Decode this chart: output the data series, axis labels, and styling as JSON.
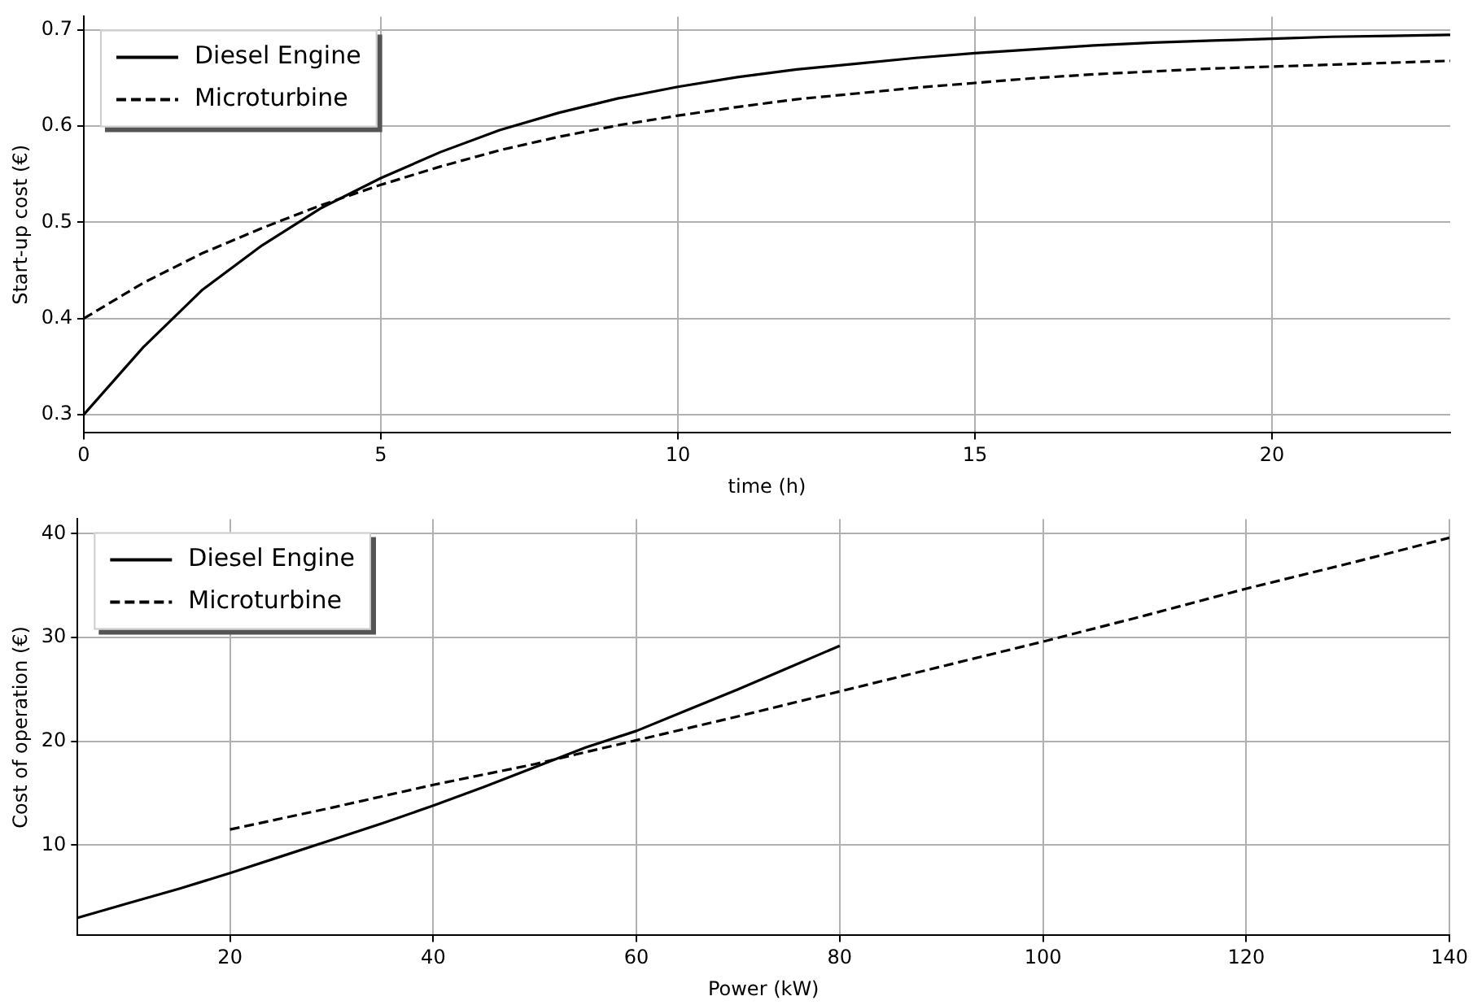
{
  "chart_data": [
    {
      "type": "line",
      "xlabel": "time (h)",
      "ylabel": "Start-up cost (€)",
      "x": [
        0,
        1,
        2,
        3,
        4,
        5,
        6,
        7,
        8,
        9,
        10,
        11,
        12,
        13,
        14,
        15,
        16,
        17,
        18,
        19,
        20,
        21,
        22,
        23
      ],
      "xlim": [
        0,
        23
      ],
      "xticks": [
        0,
        5,
        10,
        15,
        20
      ],
      "ylim": [
        0.281,
        0.714
      ],
      "yticks": [
        {
          "value": 0.3,
          "label": "0.3"
        },
        {
          "value": 0.4,
          "label": "0.4"
        },
        {
          "value": 0.5,
          "label": "0.5"
        },
        {
          "value": 0.6,
          "label": "0.6"
        },
        {
          "value": 0.7,
          "label": "0.7"
        }
      ],
      "grid": true,
      "legend": "top left",
      "marker": "none",
      "series": [
        {
          "name": "Diesel Engine",
          "color": "#000000",
          "line_style": "solid",
          "values": [
            0.3,
            0.37,
            0.43,
            0.476,
            0.515,
            0.546,
            0.573,
            0.596,
            0.614,
            0.629,
            0.641,
            0.651,
            0.659,
            0.665,
            0.671,
            0.676,
            0.68,
            0.684,
            0.687,
            0.689,
            0.691,
            0.693,
            0.694,
            0.695
          ]
        },
        {
          "name": "Microturbine",
          "color": "#000000",
          "line_style": "dashed",
          "values": [
            0.4,
            0.437,
            0.468,
            0.494,
            0.518,
            0.539,
            0.558,
            0.575,
            0.589,
            0.601,
            0.611,
            0.62,
            0.628,
            0.634,
            0.64,
            0.645,
            0.65,
            0.654,
            0.657,
            0.66,
            0.662,
            0.664,
            0.666,
            0.668
          ]
        }
      ]
    },
    {
      "type": "line",
      "xlabel": "Power (kW)",
      "ylabel": "Cost of operation (€)",
      "xlim": [
        5,
        140
      ],
      "xticks": [
        20,
        40,
        60,
        80,
        100,
        120,
        140
      ],
      "ylim": [
        1.3,
        41.4
      ],
      "yticks": [
        10,
        20,
        30,
        40
      ],
      "grid": true,
      "legend": "top left",
      "marker": "none",
      "series": [
        {
          "name": "Diesel Engine",
          "color": "#000000",
          "line_style": "solid",
          "x": [
            5,
            10,
            15,
            20,
            25,
            30,
            35,
            40,
            45,
            50,
            55,
            60,
            65,
            70,
            75,
            80
          ],
          "values": [
            3.0,
            4.4,
            5.8,
            7.3,
            8.9,
            10.5,
            12.1,
            13.8,
            15.6,
            17.5,
            19.4,
            21.0,
            23.0,
            25.0,
            27.1,
            29.2
          ]
        },
        {
          "name": "Microturbine",
          "color": "#000000",
          "line_style": "dashed",
          "x": [
            20,
            30,
            40,
            50,
            60,
            70,
            80,
            90,
            100,
            110,
            120,
            130,
            140
          ],
          "values": [
            11.5,
            13.6,
            15.8,
            17.8,
            20.1,
            22.4,
            24.8,
            27.2,
            29.6,
            32.1,
            34.7,
            37.1,
            39.6
          ]
        }
      ]
    }
  ]
}
